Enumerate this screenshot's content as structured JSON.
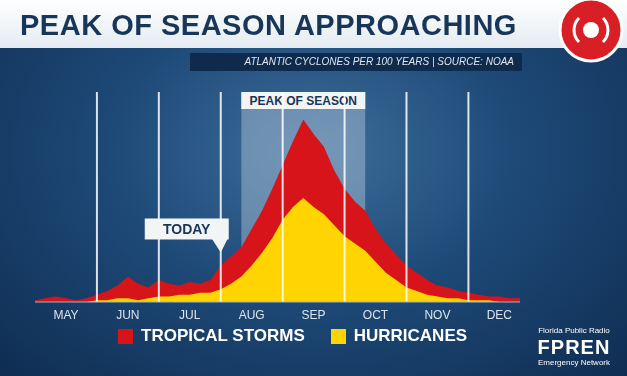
{
  "chart_data": {
    "type": "area",
    "title": "PEAK OF SEASON APPROACHING",
    "subtitle": "ATLANTIC CYCLONES PER 100 YEARS | SOURCE: NOAA",
    "annotations": [
      "PEAK OF SEASON",
      "TODAY"
    ],
    "credits": [
      "Florida Public Radio",
      "FPREN",
      "Emergency Network"
    ],
    "categories": [
      null,
      null,
      null,
      "MAY",
      null,
      null,
      null,
      null,
      null,
      "JUN",
      null,
      null,
      null,
      null,
      null,
      "JUL",
      null,
      null,
      null,
      null,
      null,
      "AUG",
      null,
      null,
      null,
      null,
      null,
      "SEP",
      null,
      null,
      null,
      null,
      null,
      "OCT",
      null,
      null,
      null,
      null,
      null,
      "NOV",
      null,
      null,
      null,
      null,
      null,
      "DEC",
      null,
      null
    ],
    "series": [
      {
        "name": "TROPICAL STORMS",
        "color": "#d7141a",
        "values": [
          1,
          2,
          3,
          2,
          1,
          2,
          4,
          6,
          9,
          14,
          10,
          8,
          12,
          10,
          9,
          11,
          10,
          12,
          20,
          25,
          30,
          40,
          50,
          62,
          75,
          88,
          100,
          92,
          85,
          72,
          62,
          55,
          50,
          40,
          32,
          26,
          20,
          16,
          12,
          9,
          8,
          6,
          5,
          4,
          3,
          3,
          2,
          2
        ]
      },
      {
        "name": "HURRICANES",
        "color": "#ffd400",
        "values": [
          0,
          0,
          0,
          0,
          0,
          0,
          1,
          1,
          2,
          2,
          1,
          2,
          3,
          3,
          4,
          4,
          5,
          5,
          7,
          10,
          14,
          20,
          27,
          35,
          45,
          52,
          57,
          52,
          48,
          42,
          36,
          32,
          28,
          22,
          16,
          12,
          8,
          6,
          4,
          3,
          2,
          2,
          1,
          1,
          1,
          0,
          0,
          0
        ]
      }
    ],
    "ylim": [
      0,
      115
    ],
    "stacked": false,
    "tick_labels": "x",
    "legend": "bottom"
  }
}
